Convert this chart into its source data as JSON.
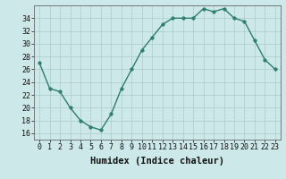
{
  "x": [
    0,
    1,
    2,
    3,
    4,
    5,
    6,
    7,
    8,
    9,
    10,
    11,
    12,
    13,
    14,
    15,
    16,
    17,
    18,
    19,
    20,
    21,
    22,
    23
  ],
  "y": [
    27,
    23,
    22.5,
    20,
    18,
    17,
    16.5,
    19,
    23,
    26,
    29,
    31,
    33,
    34,
    34,
    34,
    35.5,
    35,
    35.5,
    34,
    33.5,
    30.5,
    27.5,
    26
  ],
  "line_color": "#2e7d6e",
  "marker": "o",
  "marker_size": 2.5,
  "bg_color": "#cce8e8",
  "grid_color": "#aacccc",
  "xlabel": "Humidex (Indice chaleur)",
  "ylim": [
    15,
    36
  ],
  "yticks": [
    16,
    18,
    20,
    22,
    24,
    26,
    28,
    30,
    32,
    34
  ],
  "xlim": [
    -0.5,
    23.5
  ],
  "xticks": [
    0,
    1,
    2,
    3,
    4,
    5,
    6,
    7,
    8,
    9,
    10,
    11,
    12,
    13,
    14,
    15,
    16,
    17,
    18,
    19,
    20,
    21,
    22,
    23
  ],
  "xlabel_fontsize": 7.5,
  "tick_fontsize": 6.0,
  "line_width": 1.0
}
